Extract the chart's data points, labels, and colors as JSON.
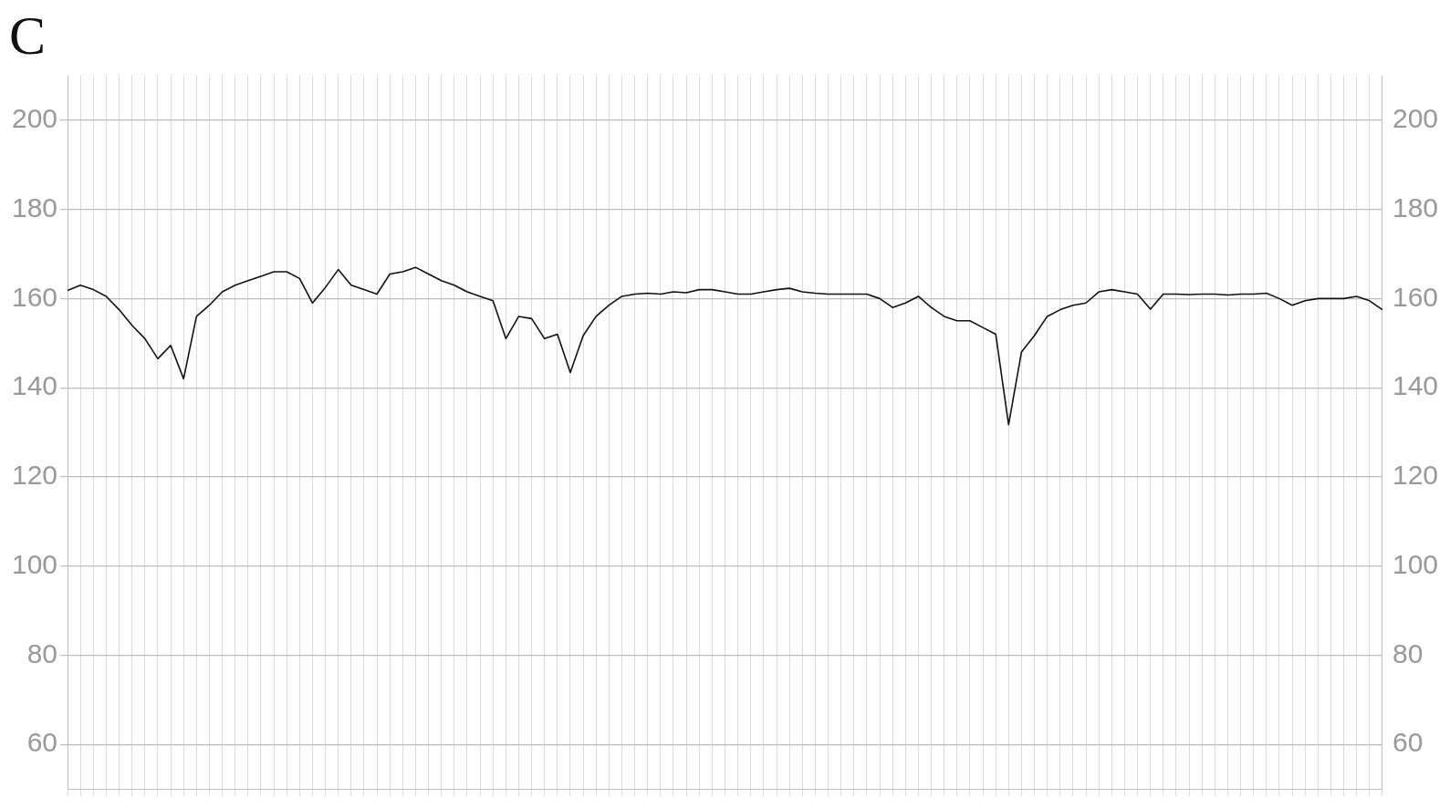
{
  "chart_data": {
    "type": "line",
    "title": "C",
    "categories": [
      null,
      null,
      null,
      null,
      null,
      null,
      null,
      null,
      null,
      null,
      null,
      null,
      null,
      null,
      null,
      null,
      null,
      null,
      null,
      null,
      null,
      null,
      null,
      null,
      null,
      null,
      null,
      null,
      null,
      null,
      null,
      null,
      null,
      null,
      null,
      null,
      null,
      null,
      null,
      null,
      null,
      null,
      null,
      null,
      null,
      null,
      null,
      null,
      null,
      null,
      null,
      null,
      null,
      null,
      null,
      null,
      null,
      null,
      null,
      null,
      null,
      null,
      null,
      null,
      null,
      null,
      null,
      null,
      null,
      null,
      null,
      null,
      null,
      null,
      null,
      null,
      null,
      null,
      null,
      null,
      null,
      null,
      null,
      null,
      null,
      null,
      null,
      null,
      null,
      null,
      null,
      null,
      null,
      null,
      null,
      null,
      null,
      null,
      null,
      null,
      null,
      null,
      null
    ],
    "series": [
      {
        "color": "#111111",
        "values": [
          161.8,
          163,
          162,
          160.5,
          157.5,
          154,
          151,
          146.5,
          149.5,
          142,
          156,
          158.5,
          161.5,
          163,
          164,
          165,
          166,
          166,
          164.5,
          159,
          162.5,
          166.5,
          163,
          162,
          161,
          165.5,
          166,
          167,
          165.5,
          164,
          163,
          161.5,
          160.5,
          159.5,
          151,
          156,
          155.5,
          151,
          152,
          143.4,
          151.7,
          156,
          158.5,
          160.5,
          161,
          161.2,
          161,
          161.5,
          161.3,
          162,
          162,
          161.5,
          161,
          161,
          161.5,
          162,
          162.3,
          161.5,
          161.2,
          161,
          161,
          161,
          161,
          160,
          158,
          159,
          160.5,
          158,
          156,
          155,
          155,
          153.5,
          152,
          131.7,
          148,
          151.7,
          156,
          157.5,
          158.5,
          159,
          161.5,
          162,
          161.5,
          161,
          157.6,
          161,
          161,
          160.9,
          161,
          161,
          160.8,
          161,
          161,
          161.2,
          160,
          158.5,
          159.5,
          160,
          160,
          160,
          160.5,
          159.5,
          157.5
        ]
      }
    ],
    "ylim": [
      50,
      210
    ],
    "yticks": [
      60,
      80,
      100,
      120,
      140,
      160,
      180,
      200
    ],
    "y2lim": [
      50,
      210
    ],
    "y2ticks": [
      60,
      80,
      100,
      120,
      140,
      160,
      180,
      200
    ],
    "grid": true,
    "legend": false,
    "marker": "none",
    "line_style": "solid"
  }
}
